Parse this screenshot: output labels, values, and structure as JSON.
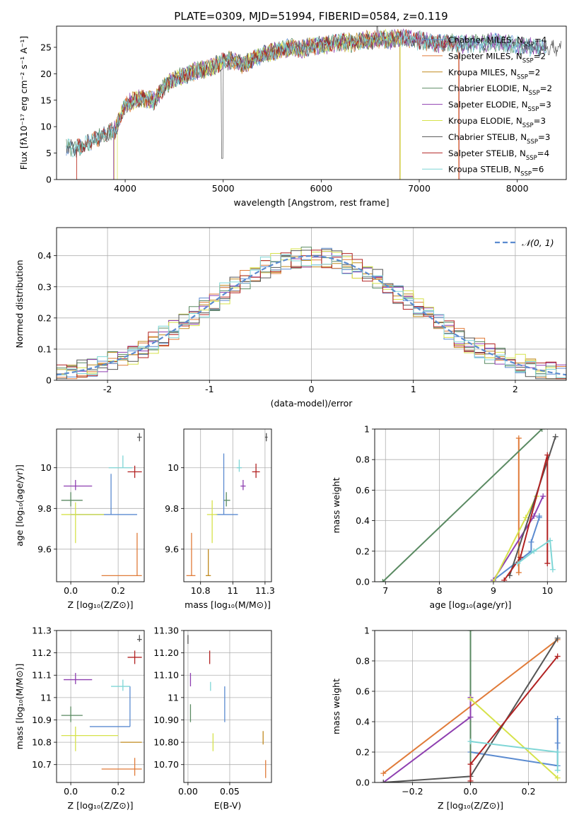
{
  "figure_title": "PLATE=0309, MJD=51994, FIBERID=0584, z=0.119",
  "colors": {
    "Chabrier MILES": "#5b8bd0",
    "Salpeter MILES": "#e07b39",
    "Kroupa MILES": "#c08a1e",
    "Chabrier ELODIE": "#5a8a62",
    "Salpeter ELODIE": "#8e3fb0",
    "Kroupa ELODIE": "#d6e24a",
    "Chabrier STELIB": "#555555",
    "Salpeter STELIB": "#b22222",
    "Kroupa STELIB": "#7fd6d6",
    "normal_curve": "#5b8bd0",
    "grid": "#b0b0b0"
  },
  "chart_data": [
    {
      "id": "spectrum",
      "type": "line",
      "title": "PLATE=0309, MJD=51994, FIBERID=0584, z=0.119",
      "xlabel": "wavelength [Angstrom, rest frame]",
      "ylabel": "Flux [fλ10⁻¹⁷ erg cm⁻² s⁻¹ A⁻¹]",
      "xlim": [
        3300,
        8500
      ],
      "ylim": [
        0,
        29
      ],
      "xticks": [
        4000,
        5000,
        6000,
        7000,
        8000
      ],
      "yticks": [
        0,
        5,
        10,
        15,
        20,
        25
      ],
      "grid": false,
      "legend_position": "right",
      "legend": [
        "Chabrier MILES, NSSP=4",
        "Salpeter MILES, NSSP=2",
        "Kroupa MILES, NSSP=2",
        "Chabrier ELODIE, NSSP=2",
        "Salpeter ELODIE, NSSP=3",
        "Kroupa ELODIE, NSSP=3",
        "Chabrier STELIB, NSSP=3",
        "Salpeter STELIB, NSSP=4",
        "Kroupa STELIB, NSSP=6"
      ],
      "series_envelope": [
        {
          "x": 3400,
          "y": 6.2
        },
        {
          "x": 3500,
          "y": 5.8
        },
        {
          "x": 3600,
          "y": 6.6
        },
        {
          "x": 3700,
          "y": 7.8
        },
        {
          "x": 3800,
          "y": 8.6
        },
        {
          "x": 3900,
          "y": 9.4
        },
        {
          "x": 4000,
          "y": 14.2
        },
        {
          "x": 4100,
          "y": 15.0
        },
        {
          "x": 4200,
          "y": 15.4
        },
        {
          "x": 4300,
          "y": 14.8
        },
        {
          "x": 4400,
          "y": 17.6
        },
        {
          "x": 4500,
          "y": 19.0
        },
        {
          "x": 4600,
          "y": 19.6
        },
        {
          "x": 4700,
          "y": 20.4
        },
        {
          "x": 4800,
          "y": 20.8
        },
        {
          "x": 4900,
          "y": 21.4
        },
        {
          "x": 5000,
          "y": 22.4
        },
        {
          "x": 5100,
          "y": 22.6
        },
        {
          "x": 5200,
          "y": 21.6
        },
        {
          "x": 5300,
          "y": 22.8
        },
        {
          "x": 5400,
          "y": 23.6
        },
        {
          "x": 5500,
          "y": 24.0
        },
        {
          "x": 5600,
          "y": 24.6
        },
        {
          "x": 5700,
          "y": 25.0
        },
        {
          "x": 5800,
          "y": 24.6
        },
        {
          "x": 5900,
          "y": 25.2
        },
        {
          "x": 6000,
          "y": 25.4
        },
        {
          "x": 6100,
          "y": 25.6
        },
        {
          "x": 6200,
          "y": 26.0
        },
        {
          "x": 6300,
          "y": 25.8
        },
        {
          "x": 6400,
          "y": 26.2
        },
        {
          "x": 6500,
          "y": 26.4
        },
        {
          "x": 6600,
          "y": 26.6
        },
        {
          "x": 6700,
          "y": 26.4
        },
        {
          "x": 6800,
          "y": 26.8
        },
        {
          "x": 6900,
          "y": 26.6
        },
        {
          "x": 7000,
          "y": 26.2
        },
        {
          "x": 7100,
          "y": 26.0
        },
        {
          "x": 7200,
          "y": 25.8
        },
        {
          "x": 7300,
          "y": 26.0
        },
        {
          "x": 7400,
          "y": 25.6
        },
        {
          "x": 7600,
          "y": 25.8
        },
        {
          "x": 7800,
          "y": 26.0
        },
        {
          "x": 8000,
          "y": 25.4
        },
        {
          "x": 8200,
          "y": 25.0
        }
      ]
    },
    {
      "id": "residuals",
      "type": "bar",
      "xlabel": "(data-model)/error",
      "ylabel": "Normed distribution",
      "xlim": [
        -2.5,
        2.5
      ],
      "ylim": [
        0,
        0.49
      ],
      "xticks": [
        -2,
        -1,
        0,
        1,
        2
      ],
      "yticks": [
        0.0,
        0.1,
        0.2,
        0.3,
        0.4
      ],
      "grid": true,
      "legend_position": "top-right",
      "legend": [
        "𝒩(0, 1)"
      ],
      "curve": {
        "name": "𝒩(0, 1)",
        "mean": 0,
        "sigma": 1
      },
      "bin_width": 0.1
    },
    {
      "id": "age_vs_Z",
      "type": "scatter",
      "xlabel": "Z [log₁₀(Z/Z⊙)]",
      "ylabel": "age  [log₁₀(age/yr)]",
      "xlim": [
        -0.06,
        0.31
      ],
      "ylim": [
        9.44,
        10.19
      ],
      "xticks": [
        0.0,
        0.2
      ],
      "yticks": [
        9.6,
        9.8,
        10.0
      ],
      "grid": true,
      "points": [
        {
          "series": "Chabrier MILES",
          "x": 0.17,
          "y": 9.77,
          "xerr": [
            0.17,
            0.11
          ],
          "yerr": [
            0.0,
            0.2
          ]
        },
        {
          "series": "Salpeter MILES",
          "x": 0.28,
          "y": 9.47,
          "xerr": [
            0.15,
            0.02
          ],
          "yerr": [
            0.0,
            0.21
          ]
        },
        {
          "series": "Chabrier ELODIE",
          "x": 0.0,
          "y": 9.84,
          "xerr": [
            0.04,
            0.05
          ],
          "yerr": [
            0.03,
            0.04
          ]
        },
        {
          "series": "Salpeter ELODIE",
          "x": 0.02,
          "y": 9.91,
          "xerr": [
            0.05,
            0.07
          ],
          "yerr": [
            0.02,
            0.03
          ]
        },
        {
          "series": "Kroupa ELODIE",
          "x": 0.02,
          "y": 9.77,
          "xerr": [
            0.06,
            0.12
          ],
          "yerr": [
            0.14,
            0.06
          ]
        },
        {
          "series": "Chabrier STELIB",
          "x": 0.29,
          "y": 10.15,
          "xerr": [
            0.01,
            0.01
          ],
          "yerr": [
            0.02,
            0.02
          ]
        },
        {
          "series": "Salpeter STELIB",
          "x": 0.27,
          "y": 9.98,
          "xerr": [
            0.03,
            0.03
          ],
          "yerr": [
            0.03,
            0.03
          ]
        },
        {
          "series": "Kroupa STELIB",
          "x": 0.22,
          "y": 10.0,
          "xerr": [
            0.06,
            0.04
          ],
          "yerr": [
            0.0,
            0.06
          ]
        }
      ]
    },
    {
      "id": "age_vs_mass",
      "type": "scatter",
      "xlabel": "mass [log₁₀(M/M⊙)]",
      "ylabel": "",
      "xlim": [
        10.62,
        11.3
      ],
      "ylim": [
        9.44,
        10.19
      ],
      "xticks": [
        10.75,
        11.0,
        11.25
      ],
      "yticks": [
        9.6,
        9.8,
        10.0
      ],
      "grid": true,
      "points": [
        {
          "series": "Chabrier MILES",
          "x": 10.93,
          "y": 9.77,
          "xerr": [
            0.06,
            0.11
          ],
          "yerr": [
            0.0,
            0.3
          ]
        },
        {
          "series": "Salpeter MILES",
          "x": 10.68,
          "y": 9.47,
          "xerr": [
            0.04,
            0.03
          ],
          "yerr": [
            0.0,
            0.21
          ]
        },
        {
          "series": "Chabrier ELODIE",
          "x": 10.95,
          "y": 9.84,
          "xerr": [
            0.02,
            0.03
          ],
          "yerr": [
            0.03,
            0.04
          ]
        },
        {
          "series": "Salpeter ELODIE",
          "x": 11.08,
          "y": 9.91,
          "xerr": [
            0.02,
            0.02
          ],
          "yerr": [
            0.02,
            0.03
          ]
        },
        {
          "series": "Kroupa ELODIE",
          "x": 10.84,
          "y": 9.77,
          "xerr": [
            0.04,
            0.04
          ],
          "yerr": [
            0.14,
            0.07
          ]
        },
        {
          "series": "Chabrier STELIB",
          "x": 11.26,
          "y": 10.15,
          "xerr": [
            0.01,
            0.01
          ],
          "yerr": [
            0.02,
            0.02
          ]
        },
        {
          "series": "Salpeter STELIB",
          "x": 11.18,
          "y": 9.98,
          "xerr": [
            0.03,
            0.03
          ],
          "yerr": [
            0.03,
            0.04
          ]
        },
        {
          "series": "Kroupa STELIB",
          "x": 11.05,
          "y": 10.0,
          "xerr": [
            0.02,
            0.02
          ],
          "yerr": [
            0.02,
            0.04
          ]
        },
        {
          "series": "Kroupa MILES",
          "x": 10.81,
          "y": 9.47,
          "xerr": [
            0.02,
            0.02
          ],
          "yerr": [
            0.0,
            0.13
          ]
        }
      ]
    },
    {
      "id": "weight_vs_age",
      "type": "line",
      "xlabel": "age  [log₁₀(age/yr)]",
      "ylabel": "mass weight",
      "xlim": [
        6.8,
        10.35
      ],
      "ylim": [
        0,
        1.0
      ],
      "xticks": [
        7,
        8,
        9,
        10
      ],
      "yticks": [
        0.0,
        0.2,
        0.4,
        0.6,
        0.8,
        1.0
      ],
      "grid": true,
      "series": [
        {
          "name": "Chabrier MILES",
          "x": [
            9.0,
            9.7,
            9.7,
            9.85,
            9.85
          ],
          "y": [
            0.01,
            0.2,
            0.26,
            0.42,
            0.43
          ]
        },
        {
          "name": "Salpeter MILES",
          "x": [
            9.47,
            9.47
          ],
          "y": [
            0.06,
            0.94
          ]
        },
        {
          "name": "Chabrier ELODIE",
          "x": [
            6.95,
            9.9
          ],
          "y": [
            0.0,
            1.0
          ]
        },
        {
          "name": "Salpeter ELODIE",
          "x": [
            9.0,
            9.75,
            9.92
          ],
          "y": [
            0.01,
            0.43,
            0.56
          ]
        },
        {
          "name": "Kroupa ELODIE",
          "x": [
            9.0,
            9.6,
            9.8
          ],
          "y": [
            0.0,
            0.42,
            0.56
          ]
        },
        {
          "name": "Chabrier STELIB",
          "x": [
            9.3,
            10.15
          ],
          "y": [
            0.04,
            0.95
          ]
        },
        {
          "name": "Salpeter STELIB",
          "x": [
            9.2,
            9.5,
            10.0,
            10.0
          ],
          "y": [
            0.01,
            0.16,
            0.83,
            0.12
          ]
        },
        {
          "name": "Kroupa STELIB",
          "x": [
            9.45,
            9.75,
            10.05,
            10.1
          ],
          "y": [
            0.12,
            0.2,
            0.27,
            0.08
          ]
        }
      ]
    },
    {
      "id": "mass_vs_Z",
      "type": "scatter",
      "xlabel": "Z [log₁₀(Z/Z⊙)]",
      "ylabel": "mass [log₁₀(M/M⊙)]",
      "xlim": [
        -0.06,
        0.31
      ],
      "ylim": [
        10.62,
        11.3
      ],
      "xticks": [
        0.0,
        0.2
      ],
      "yticks": [
        10.7,
        10.8,
        10.9,
        11.0,
        11.1,
        11.2,
        11.3
      ],
      "grid": true,
      "points": [
        {
          "series": "Chabrier MILES",
          "x": 0.25,
          "y": 10.87,
          "xerr": [
            0.17,
            0.0
          ],
          "yerr": [
            0.0,
            0.18
          ]
        },
        {
          "series": "Salpeter MILES",
          "x": 0.27,
          "y": 10.68,
          "xerr": [
            0.14,
            0.03
          ],
          "yerr": [
            0.03,
            0.05
          ]
        },
        {
          "series": "Chabrier ELODIE",
          "x": 0.0,
          "y": 10.92,
          "xerr": [
            0.04,
            0.05
          ],
          "yerr": [
            0.03,
            0.04
          ]
        },
        {
          "series": "Salpeter ELODIE",
          "x": 0.02,
          "y": 11.08,
          "xerr": [
            0.05,
            0.07
          ],
          "yerr": [
            0.02,
            0.03
          ]
        },
        {
          "series": "Kroupa ELODIE",
          "x": 0.02,
          "y": 10.83,
          "xerr": [
            0.06,
            0.18
          ],
          "yerr": [
            0.07,
            0.04
          ]
        },
        {
          "series": "Chabrier STELIB",
          "x": 0.29,
          "y": 11.26,
          "xerr": [
            0.01,
            0.01
          ],
          "yerr": [
            0.01,
            0.02
          ]
        },
        {
          "series": "Salpeter STELIB",
          "x": 0.27,
          "y": 11.18,
          "xerr": [
            0.03,
            0.03
          ],
          "yerr": [
            0.03,
            0.03
          ]
        },
        {
          "series": "Kroupa STELIB",
          "x": 0.22,
          "y": 11.05,
          "xerr": [
            0.05,
            0.03
          ],
          "yerr": [
            0.02,
            0.03
          ]
        },
        {
          "series": "Kroupa MILES",
          "x": 0.27,
          "y": 10.8,
          "xerr": [
            0.06,
            0.03
          ],
          "yerr": [
            0.0,
            0.0
          ]
        }
      ]
    },
    {
      "id": "mass_vs_EBV",
      "type": "scatter",
      "xlabel": "E(B-V)",
      "ylabel": "",
      "xlim": [
        -0.005,
        0.1
      ],
      "ylim": [
        10.62,
        11.3
      ],
      "xticks": [
        0.0,
        0.05
      ],
      "yticks": [
        10.7,
        10.8,
        10.9,
        11.0,
        11.1,
        11.2,
        11.3
      ],
      "grid": true,
      "points": [
        {
          "series": "Chabrier MILES",
          "x": 0.044,
          "y": 10.97,
          "xerr": [
            0,
            0
          ],
          "yerr": [
            0.08,
            0.08
          ]
        },
        {
          "series": "Salpeter MILES",
          "x": 0.093,
          "y": 10.68,
          "xerr": [
            0,
            0
          ],
          "yerr": [
            0.04,
            0.04
          ]
        },
        {
          "series": "Chabrier ELODIE",
          "x": 0.003,
          "y": 10.93,
          "xerr": [
            0,
            0
          ],
          "yerr": [
            0.04,
            0.04
          ]
        },
        {
          "series": "Salpeter ELODIE",
          "x": 0.003,
          "y": 11.08,
          "xerr": [
            0,
            0
          ],
          "yerr": [
            0.03,
            0.03
          ]
        },
        {
          "series": "Kroupa ELODIE",
          "x": 0.03,
          "y": 10.8,
          "xerr": [
            0,
            0
          ],
          "yerr": [
            0.04,
            0.04
          ]
        },
        {
          "series": "Chabrier STELIB",
          "x": 0.0,
          "y": 11.26,
          "xerr": [
            0,
            0
          ],
          "yerr": [
            0.02,
            0.02
          ]
        },
        {
          "series": "Salpeter STELIB",
          "x": 0.026,
          "y": 11.18,
          "xerr": [
            0,
            0
          ],
          "yerr": [
            0.03,
            0.03
          ]
        },
        {
          "series": "Kroupa STELIB",
          "x": 0.027,
          "y": 11.05,
          "xerr": [
            0,
            0
          ],
          "yerr": [
            0.02,
            0.02
          ]
        },
        {
          "series": "Kroupa MILES",
          "x": 0.09,
          "y": 10.82,
          "xerr": [
            0,
            0
          ],
          "yerr": [
            0.03,
            0.03
          ]
        }
      ]
    },
    {
      "id": "weight_vs_Z",
      "type": "line",
      "xlabel": "Z [log₁₀(Z/Z⊙)]",
      "ylabel": "mass weight",
      "xlim": [
        -0.33,
        0.33
      ],
      "ylim": [
        0,
        1.0
      ],
      "xticks": [
        -0.2,
        0.0,
        0.2
      ],
      "yticks": [
        0.0,
        0.2,
        0.4,
        0.6,
        0.8,
        1.0
      ],
      "grid": true,
      "series": [
        {
          "name": "Chabrier MILES",
          "x": [
            0.0,
            0.3,
            0.3,
            0.3
          ],
          "y": [
            0.2,
            0.11,
            0.26,
            0.42
          ]
        },
        {
          "name": "Salpeter MILES",
          "x": [
            -0.3,
            0.3
          ],
          "y": [
            0.06,
            0.94
          ]
        },
        {
          "name": "Chabrier ELODIE",
          "x": [
            0.0,
            0.0
          ],
          "y": [
            0.0,
            1.0
          ]
        },
        {
          "name": "Salpeter ELODIE",
          "x": [
            -0.3,
            0.0,
            0.0
          ],
          "y": [
            0.0,
            0.43,
            0.56
          ]
        },
        {
          "name": "Kroupa ELODIE",
          "x": [
            0.0,
            0.3
          ],
          "y": [
            0.55,
            0.03
          ]
        },
        {
          "name": "Chabrier STELIB",
          "x": [
            -0.3,
            0.0,
            0.3
          ],
          "y": [
            0.0,
            0.04,
            0.95
          ]
        },
        {
          "name": "Salpeter STELIB",
          "x": [
            0.0,
            0.0,
            0.3
          ],
          "y": [
            0.01,
            0.12,
            0.83
          ]
        },
        {
          "name": "Kroupa STELIB",
          "x": [
            0.0,
            0.3,
            0.3
          ],
          "y": [
            0.27,
            0.2,
            0.08
          ]
        }
      ]
    }
  ]
}
